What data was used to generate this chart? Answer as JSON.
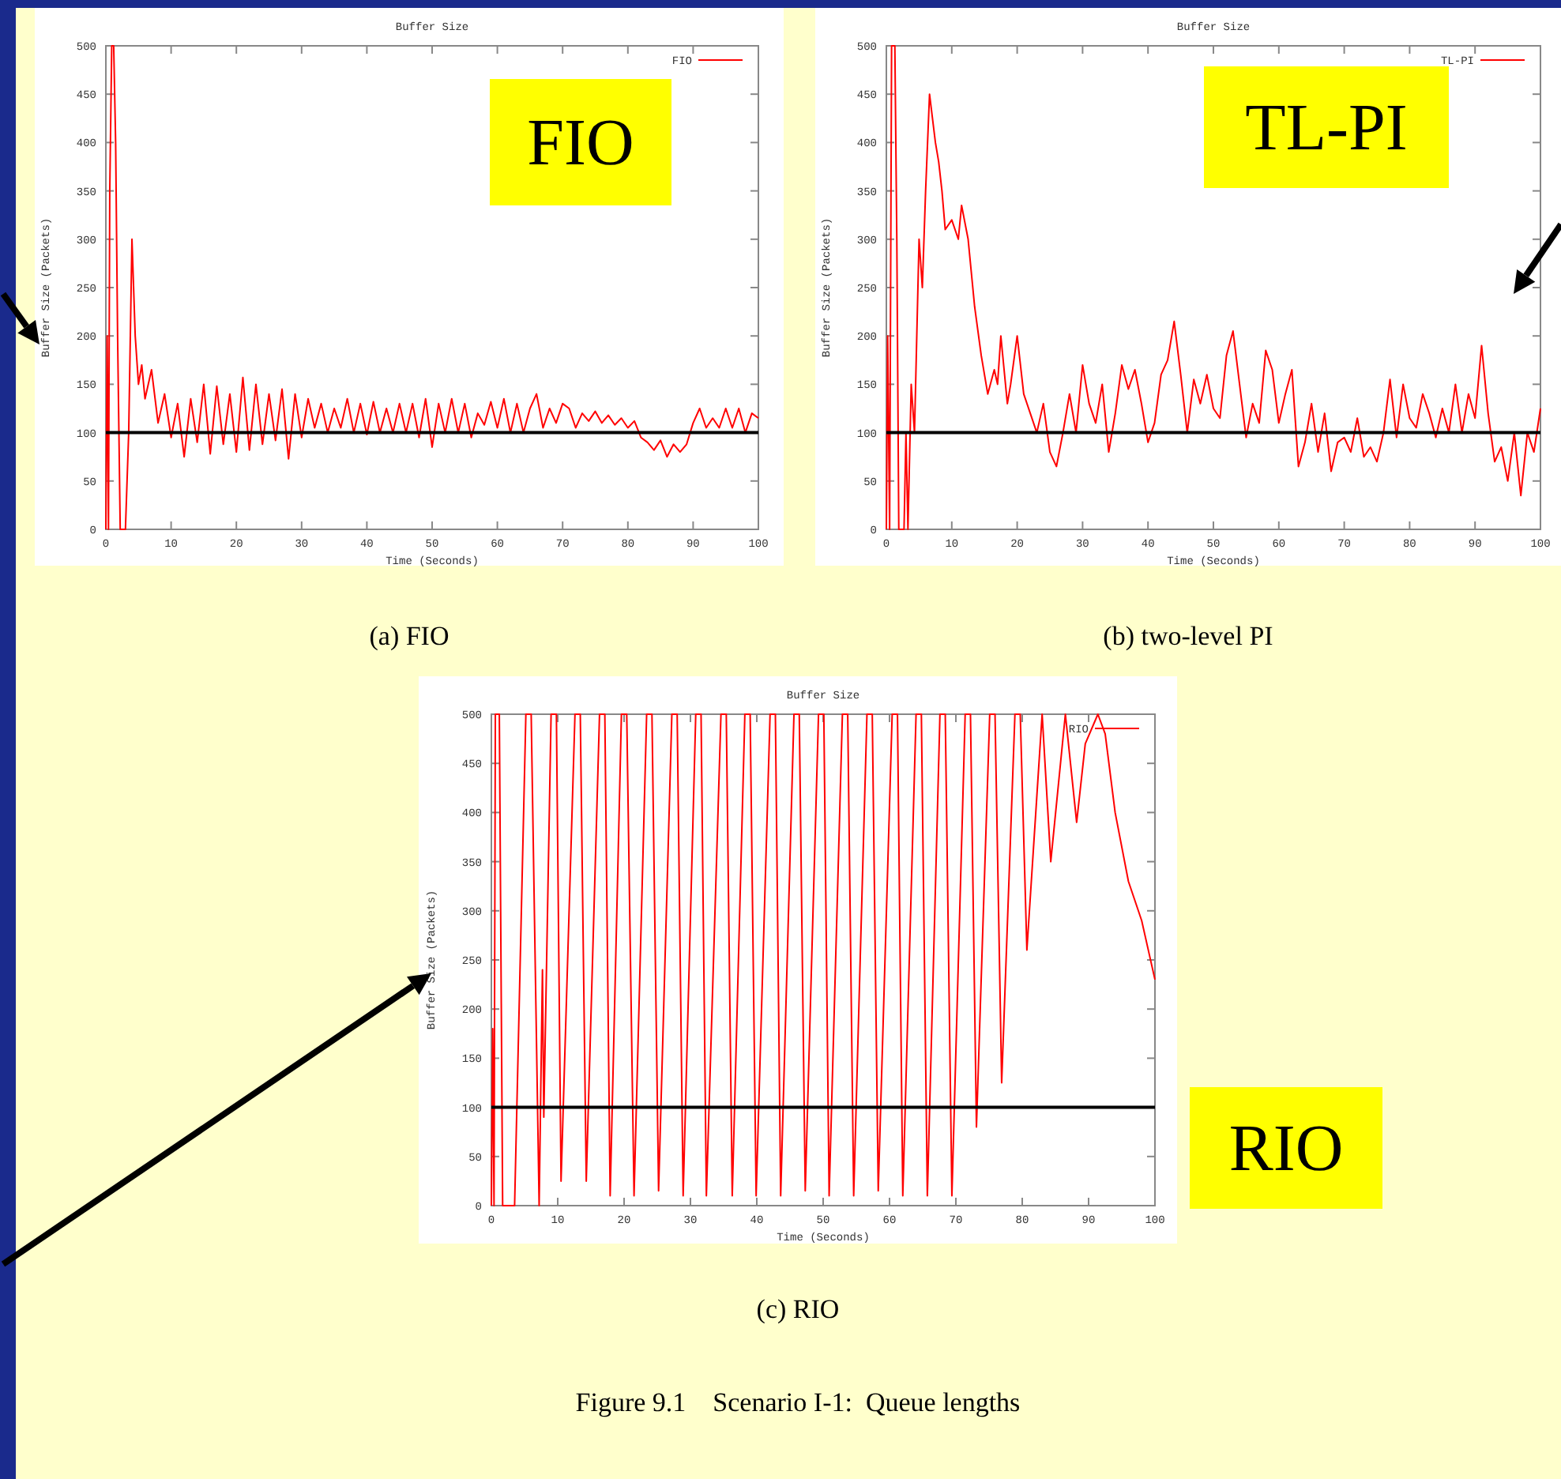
{
  "chart_data": [
    {
      "type": "line",
      "title": "Buffer Size",
      "xlabel": "Time (Seconds)",
      "ylabel": "Buffer Size (Packets)",
      "xlim": [
        0,
        100
      ],
      "ylim": [
        0,
        500
      ],
      "xticks": [
        0,
        10,
        20,
        30,
        40,
        50,
        60,
        70,
        80,
        90,
        100
      ],
      "yticks": [
        0,
        50,
        100,
        150,
        200,
        250,
        300,
        350,
        400,
        450,
        500
      ],
      "grid": false,
      "legend": "top right",
      "marker": "none",
      "line_style": "solid",
      "series": [
        {
          "name": "FIO",
          "color": "#ff0000",
          "x": [
            0,
            0.2,
            0.4,
            0.6,
            0.9,
            1.2,
            1.5,
            1.8,
            2.2,
            3,
            3.5,
            4,
            4.5,
            5,
            5.5,
            6,
            7,
            8,
            9,
            10,
            11,
            12,
            13,
            14,
            15,
            16,
            17,
            18,
            19,
            20,
            21,
            22,
            23,
            24,
            25,
            26,
            27,
            28,
            29,
            30,
            31,
            32,
            33,
            34,
            35,
            36,
            37,
            38,
            39,
            40,
            41,
            42,
            43,
            44,
            45,
            46,
            47,
            48,
            49,
            50,
            51,
            52,
            53,
            54,
            55,
            56,
            57,
            58,
            59,
            60,
            61,
            62,
            63,
            64,
            65,
            66,
            67,
            68,
            69,
            70,
            71,
            72,
            73,
            74,
            75,
            76,
            77,
            78,
            79,
            80,
            81,
            82,
            83,
            84,
            85,
            86,
            87,
            88,
            89,
            90,
            91,
            92,
            93,
            94,
            95,
            96,
            97,
            98,
            99,
            100
          ],
          "values": [
            0,
            200,
            0,
            350,
            500,
            500,
            400,
            200,
            0,
            0,
            100,
            300,
            200,
            150,
            170,
            135,
            165,
            110,
            140,
            95,
            130,
            75,
            135,
            90,
            150,
            78,
            148,
            88,
            140,
            80,
            157,
            82,
            150,
            88,
            140,
            92,
            145,
            73,
            140,
            95,
            135,
            105,
            130,
            100,
            125,
            105,
            135,
            100,
            130,
            98,
            132,
            100,
            125,
            100,
            130,
            100,
            130,
            95,
            135,
            85,
            130,
            100,
            135,
            100,
            130,
            95,
            120,
            108,
            132,
            105,
            135,
            100,
            130,
            100,
            125,
            140,
            105,
            125,
            110,
            130,
            125,
            105,
            120,
            112,
            122,
            110,
            118,
            108,
            115,
            105,
            112,
            95,
            90,
            82,
            92,
            75,
            88,
            80,
            88,
            110,
            125,
            105,
            115,
            105,
            125,
            105,
            125,
            100,
            120,
            115
          ]
        }
      ],
      "ref_lines": [
        {
          "axis": "y",
          "value": 100,
          "color": "#000000"
        }
      ],
      "annotations": [
        "FIO",
        "(a) FIO"
      ]
    },
    {
      "type": "line",
      "title": "Buffer Size",
      "xlabel": "Time (Seconds)",
      "ylabel": "Buffer Size (Packets)",
      "xlim": [
        0,
        100
      ],
      "ylim": [
        0,
        500
      ],
      "xticks": [
        0,
        10,
        20,
        30,
        40,
        50,
        60,
        70,
        80,
        90,
        100
      ],
      "yticks": [
        0,
        50,
        100,
        150,
        200,
        250,
        300,
        350,
        400,
        450,
        500
      ],
      "grid": false,
      "legend": "top right",
      "marker": "none",
      "line_style": "solid",
      "series": [
        {
          "name": "TL-PI",
          "color": "#ff0000",
          "x": [
            0,
            0.2,
            0.5,
            0.8,
            1.3,
            1.6,
            1.9,
            2.7,
            3,
            3.3,
            3.8,
            4.3,
            5,
            5.5,
            6,
            6.6,
            7.5,
            8,
            8.5,
            9,
            10,
            11,
            11.5,
            12.5,
            13.5,
            14.5,
            15.5,
            16.5,
            17,
            17.5,
            18.5,
            19,
            20,
            21,
            22,
            23,
            24,
            25,
            26,
            27,
            28,
            29,
            30,
            31,
            32,
            33,
            34,
            35,
            36,
            37,
            38,
            39,
            40,
            41,
            42,
            43,
            44,
            45,
            46,
            47,
            48,
            49,
            50,
            51,
            52,
            53,
            54,
            55,
            56,
            57,
            58,
            59,
            60,
            61,
            62,
            63,
            64,
            65,
            66,
            67,
            68,
            69,
            70,
            71,
            72,
            73,
            74,
            75,
            76,
            77,
            78,
            79,
            80,
            81,
            82,
            83,
            84,
            85,
            86,
            87,
            88,
            89,
            90,
            91,
            92,
            93,
            94,
            95,
            96,
            97,
            98,
            99,
            100
          ],
          "values": [
            0,
            200,
            0,
            500,
            500,
            300,
            0,
            0,
            100,
            0,
            150,
            100,
            300,
            250,
            350,
            450,
            400,
            380,
            350,
            310,
            320,
            300,
            335,
            300,
            230,
            180,
            140,
            165,
            150,
            200,
            130,
            150,
            200,
            140,
            120,
            100,
            130,
            80,
            65,
            100,
            140,
            100,
            170,
            130,
            110,
            150,
            80,
            120,
            170,
            145,
            165,
            130,
            90,
            110,
            160,
            175,
            215,
            160,
            100,
            155,
            130,
            160,
            125,
            115,
            180,
            205,
            150,
            95,
            130,
            110,
            185,
            165,
            110,
            140,
            165,
            65,
            90,
            130,
            80,
            120,
            60,
            90,
            95,
            80,
            115,
            75,
            85,
            70,
            100,
            155,
            95,
            150,
            115,
            105,
            140,
            120,
            95,
            125,
            100,
            150,
            100,
            140,
            115,
            190,
            120,
            70,
            85,
            50,
            100,
            35,
            100,
            80,
            125
          ]
        }
      ],
      "ref_lines": [
        {
          "axis": "y",
          "value": 100,
          "color": "#000000"
        }
      ],
      "annotations": [
        "TL-PI",
        "(b) two-level PI"
      ]
    },
    {
      "type": "line",
      "title": "Buffer Size",
      "xlabel": "Time (Seconds)",
      "ylabel": "Buffer Size (Packets)",
      "xlim": [
        0,
        100
      ],
      "ylim": [
        0,
        500
      ],
      "xticks": [
        0,
        10,
        20,
        30,
        40,
        50,
        60,
        70,
        80,
        90,
        100
      ],
      "yticks": [
        0,
        50,
        100,
        150,
        200,
        250,
        300,
        350,
        400,
        450,
        500
      ],
      "grid": false,
      "legend": "top right",
      "marker": "none",
      "line_style": "solid",
      "series": [
        {
          "name": "RIO",
          "color": "#ff0000",
          "x": [
            0,
            0.2,
            0.4,
            0.6,
            1.2,
            1.7,
            3.5,
            5.2,
            6,
            7.2,
            7.7,
            7.9,
            9,
            9.8,
            10.5,
            12.6,
            13.4,
            14.3,
            16.3,
            17.1,
            17.9,
            19.6,
            20.4,
            21.5,
            23.4,
            24.2,
            25.2,
            27.2,
            28,
            28.9,
            30.8,
            31.6,
            32.4,
            34.6,
            35.4,
            36.3,
            38.2,
            39,
            39.9,
            42,
            42.8,
            43.6,
            45.6,
            46.4,
            47.3,
            49.3,
            50.1,
            50.9,
            52.9,
            53.7,
            54.6,
            56.6,
            57.4,
            58.3,
            60.4,
            61.2,
            62,
            64,
            64.8,
            65.7,
            67.6,
            68.4,
            69.4,
            71.4,
            72.2,
            73.1,
            75.1,
            75.9,
            76.9,
            78.9,
            79.7,
            80.7,
            83,
            84.3,
            86.5,
            88.2,
            89.5,
            91.4,
            92.5,
            94,
            96,
            98,
            100
          ],
          "values": [
            0,
            180,
            0,
            500,
            500,
            0,
            0,
            500,
            500,
            0,
            240,
            90,
            500,
            500,
            25,
            500,
            500,
            25,
            500,
            500,
            10,
            500,
            500,
            10,
            500,
            500,
            15,
            500,
            500,
            10,
            500,
            500,
            10,
            500,
            500,
            10,
            500,
            500,
            10,
            500,
            500,
            10,
            500,
            500,
            15,
            500,
            500,
            10,
            500,
            500,
            10,
            500,
            500,
            15,
            500,
            500,
            10,
            500,
            500,
            10,
            500,
            500,
            10,
            500,
            500,
            80,
            500,
            500,
            125,
            500,
            500,
            260,
            500,
            350,
            500,
            390,
            470,
            500,
            480,
            400,
            330,
            290,
            230
          ]
        }
      ],
      "ref_lines": [
        {
          "axis": "y",
          "value": 100,
          "color": "#000000"
        }
      ],
      "annotations": [
        "RIO",
        "(c) RIO",
        "Figure 9.1    Scenario I-1:  Queue lengths"
      ]
    }
  ]
}
